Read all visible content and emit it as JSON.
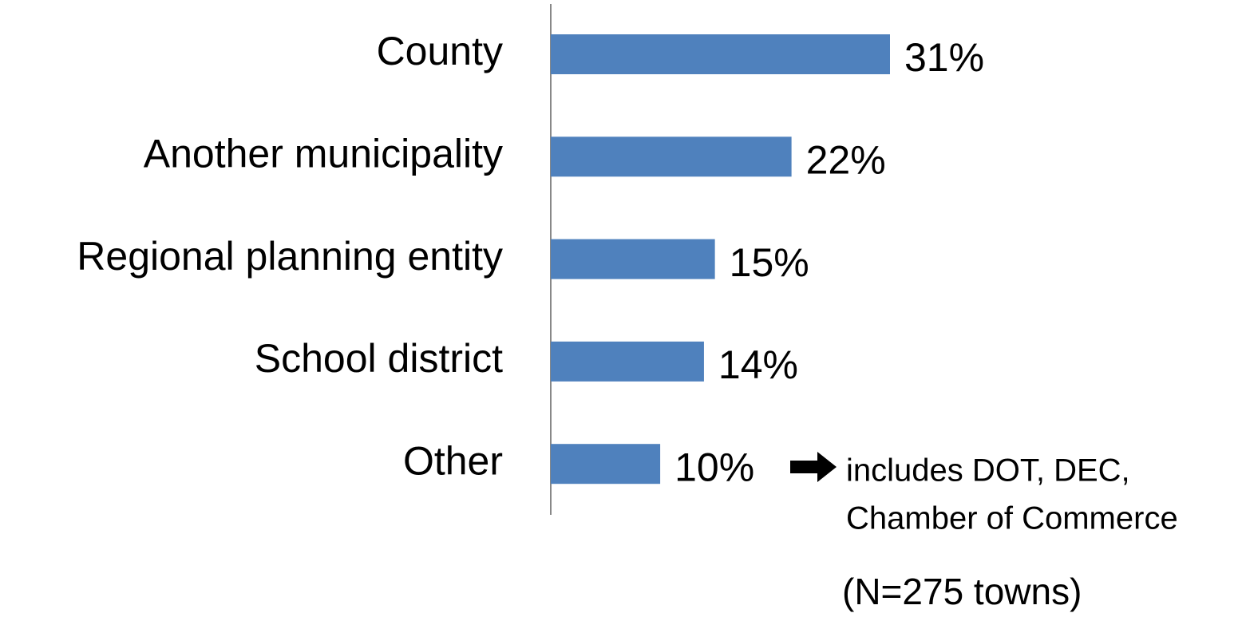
{
  "chart_data": {
    "type": "bar",
    "orientation": "horizontal",
    "categories": [
      "County",
      "Another municipality",
      "Regional planning entity",
      "School district",
      "Other"
    ],
    "values": [
      31,
      22,
      15,
      14,
      10
    ],
    "value_labels": [
      "31%",
      "22%",
      "15%",
      "14%",
      "10%"
    ],
    "color": "#4f81bd",
    "annotation_lines": [
      "includes DOT, DEC,",
      "Chamber of Commerce"
    ],
    "note": "(N=275 towns)"
  }
}
